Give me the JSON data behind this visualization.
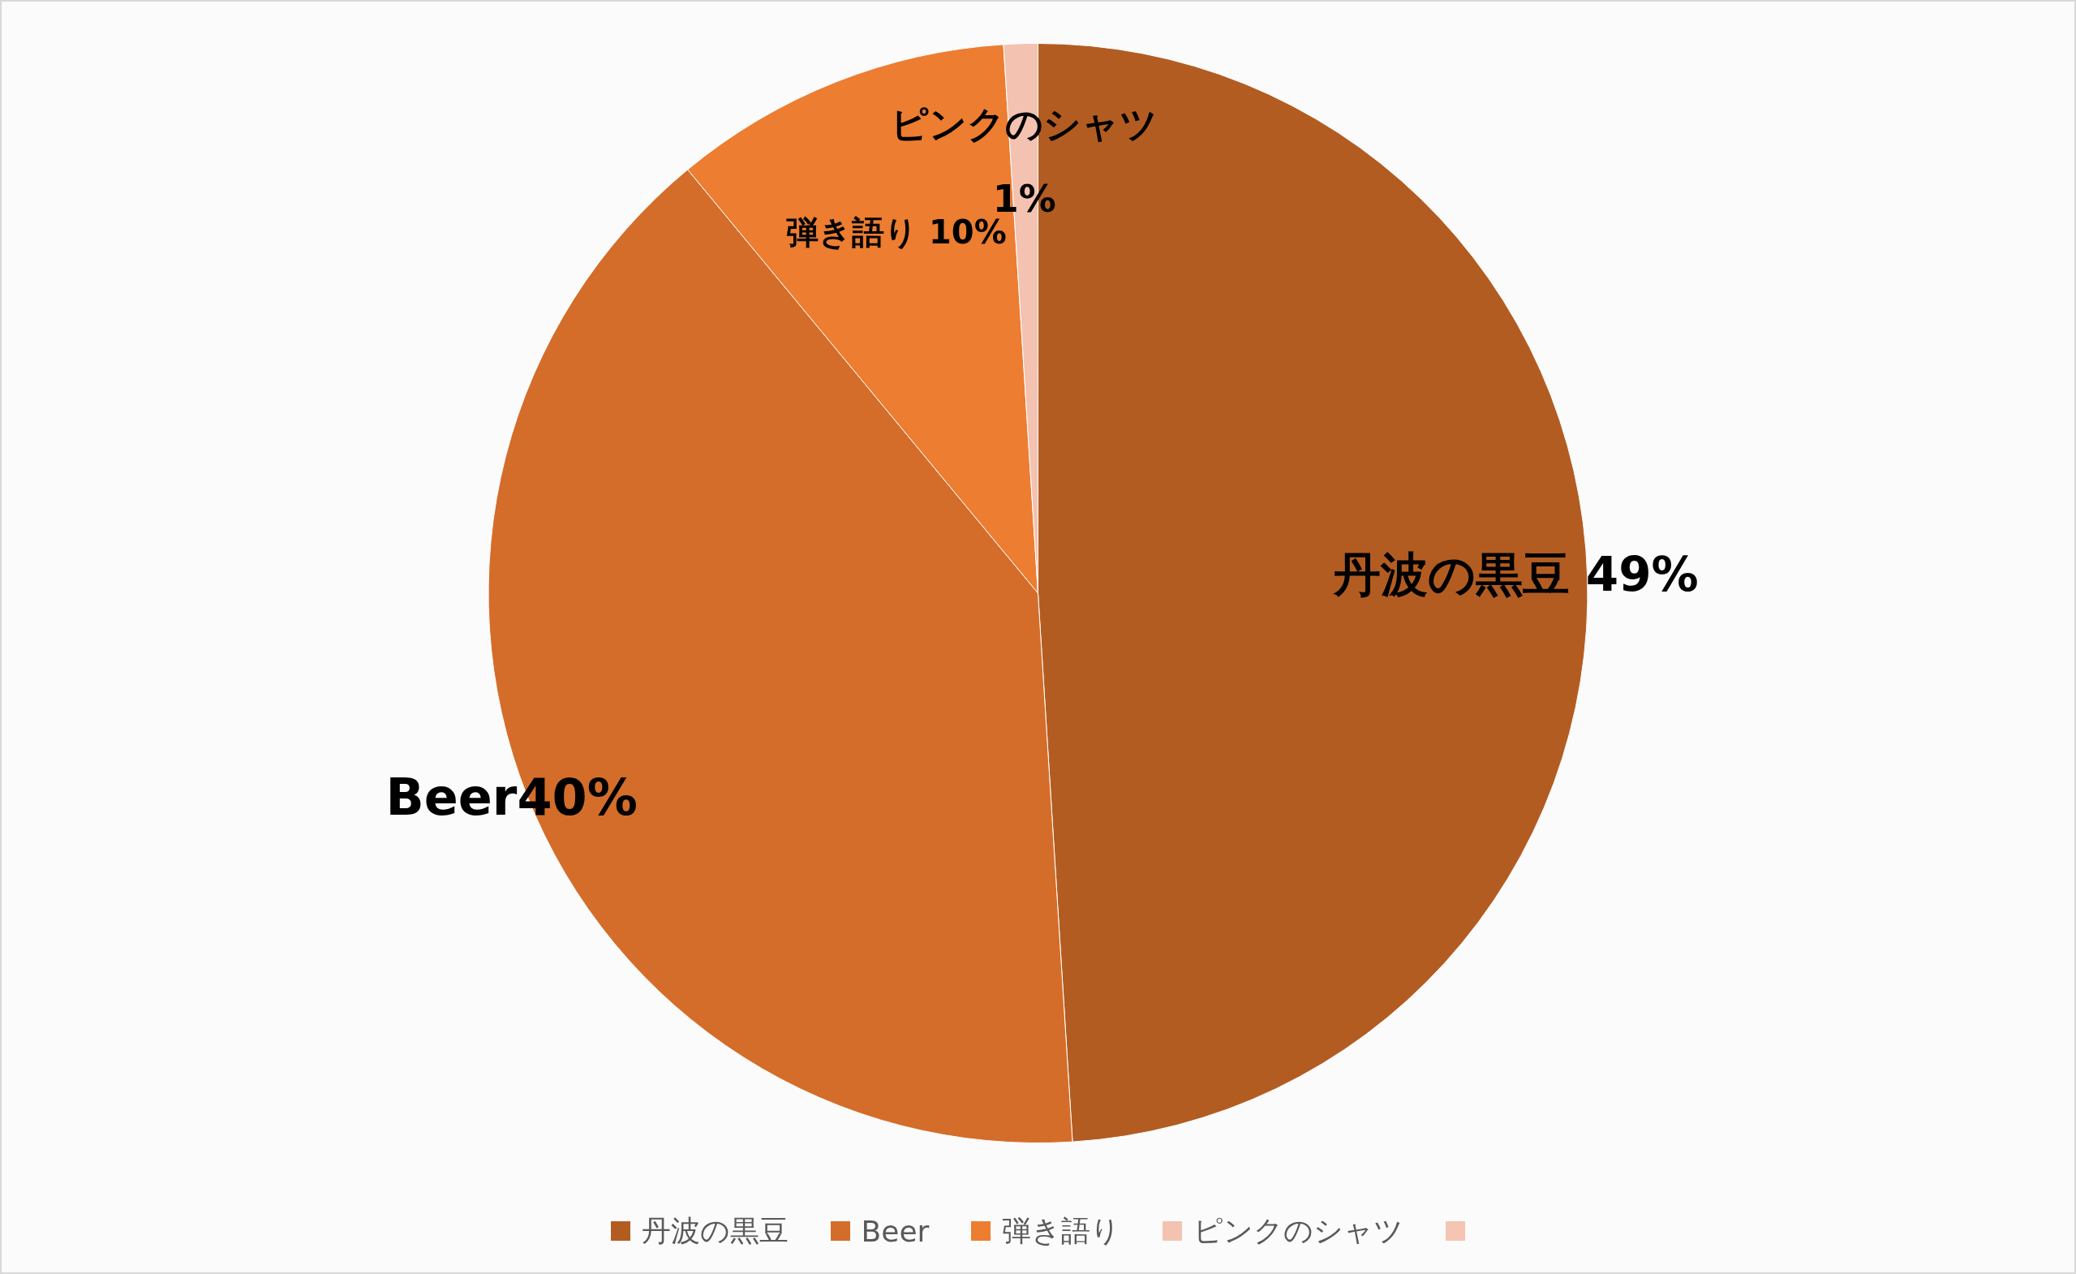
{
  "chart_data": {
    "type": "pie",
    "categories": [
      "丹波の黒豆",
      "Beer",
      "弾き語り",
      "ピンクのシャツ",
      null
    ],
    "values": [
      49,
      40,
      10,
      1,
      0
    ],
    "colors": [
      "#b35c22",
      "#d46d2a",
      "#ed7d31",
      "#f4c2b0",
      "#f5c4b2"
    ],
    "value_labels": [
      "丹波の黒豆 49%",
      "Beer40%",
      "弾き語り 10%",
      "ピンクのシャツ\n1%",
      null
    ],
    "legend": "bottom"
  }
}
